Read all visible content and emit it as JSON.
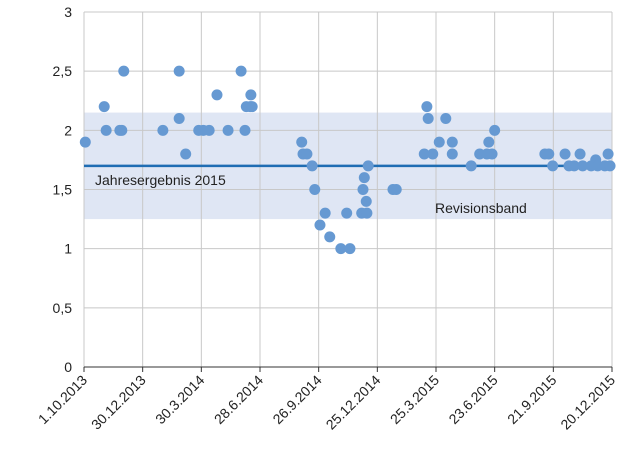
{
  "chart_data": {
    "type": "scatter",
    "x": [
      "2013-10-03",
      "2013-11-01",
      "2013-11-04",
      "2013-11-25",
      "2013-11-28",
      "2013-12-01",
      "2014-01-30",
      "2014-02-24",
      "2014-02-24",
      "2014-03-06",
      "2014-03-26",
      "2014-04-02",
      "2014-04-11",
      "2014-04-23",
      "2014-05-10",
      "2014-05-30",
      "2014-06-05",
      "2014-06-07",
      "2014-06-13",
      "2014-06-14",
      "2014-06-16",
      "2014-08-31",
      "2014-09-02",
      "2014-09-08",
      "2014-09-16",
      "2014-09-20",
      "2014-09-28",
      "2014-10-06",
      "2014-10-13",
      "2014-10-30",
      "2014-11-08",
      "2014-11-13",
      "2014-12-01",
      "2014-12-03",
      "2014-12-05",
      "2014-12-08",
      "2014-12-09",
      "2014-12-11",
      "2015-01-18",
      "2015-01-23",
      "2015-03-07",
      "2015-03-11",
      "2015-03-13",
      "2015-03-20",
      "2015-03-30",
      "2015-04-09",
      "2015-04-19",
      "2015-04-19",
      "2015-05-18",
      "2015-05-31",
      "2015-06-11",
      "2015-06-14",
      "2015-06-19",
      "2015-06-23",
      "2015-09-08",
      "2015-09-14",
      "2015-09-20",
      "2015-10-09",
      "2015-10-15",
      "2015-10-23",
      "2015-11-01",
      "2015-11-05",
      "2015-11-18",
      "2015-11-25",
      "2015-11-28",
      "2015-12-09",
      "2015-12-14",
      "2015-12-17"
    ],
    "values": [
      1.9,
      2.2,
      2.0,
      2.0,
      2.0,
      2.5,
      2.0,
      2.5,
      2.1,
      1.8,
      2.0,
      2.0,
      2.0,
      2.3,
      2.0,
      2.5,
      2.0,
      2.2,
      2.2,
      2.3,
      2.2,
      1.9,
      1.8,
      1.8,
      1.7,
      1.5,
      1.2,
      1.3,
      1.1,
      1.0,
      1.3,
      1.0,
      1.3,
      1.5,
      1.6,
      1.4,
      1.3,
      1.7,
      1.5,
      1.5,
      1.8,
      2.2,
      2.1,
      1.8,
      1.9,
      2.1,
      1.8,
      1.9,
      1.7,
      1.8,
      1.8,
      1.9,
      1.8,
      2.0,
      1.8,
      1.8,
      1.7,
      1.8,
      1.7,
      1.7,
      1.8,
      1.7,
      1.7,
      1.75,
      1.7,
      1.7,
      1.8,
      1.7
    ],
    "color": "#6699d2",
    "xlim": [
      "2013-10-01",
      "2015-12-20"
    ],
    "xticks": [
      {
        "value": "2013-10-01",
        "label": "1.10.2013"
      },
      {
        "value": "2013-12-30",
        "label": "30.12.2013"
      },
      {
        "value": "2014-03-30",
        "label": "30.3.2014"
      },
      {
        "value": "2014-06-28",
        "label": "28.6.2014"
      },
      {
        "value": "2014-09-26",
        "label": "26.9.2014"
      },
      {
        "value": "2014-12-25",
        "label": "25.12.2014"
      },
      {
        "value": "2015-03-25",
        "label": "25.3.2015"
      },
      {
        "value": "2015-06-23",
        "label": "23.6.2015"
      },
      {
        "value": "2015-09-21",
        "label": "21.9.2015"
      },
      {
        "value": "2015-12-20",
        "label": "20.12.2015"
      }
    ],
    "ylim": [
      0,
      3
    ],
    "yticks": [
      0,
      {
        "value": 0.5,
        "label": "0,5"
      },
      1,
      {
        "value": 1.5,
        "label": "1,5"
      },
      2,
      {
        "value": 2.5,
        "label": "2,5"
      },
      3
    ],
    "grid": true,
    "band": {
      "label": "Revisionsband",
      "range": [
        1.25,
        2.15
      ],
      "color": "#dfe6f4"
    },
    "reference_line": {
      "label": "Jahresergebnis 2015",
      "value": 1.7,
      "color": "#1f6db3"
    }
  }
}
